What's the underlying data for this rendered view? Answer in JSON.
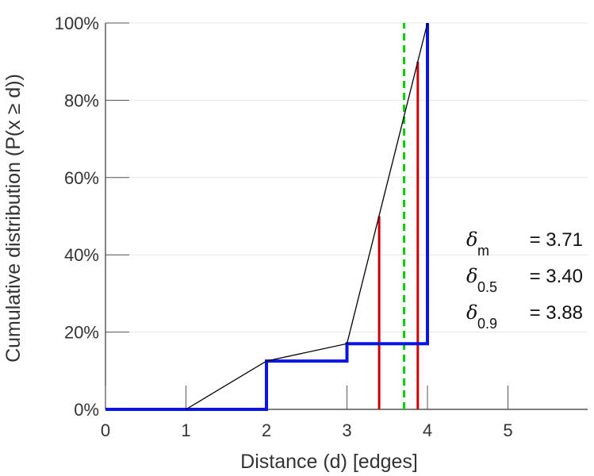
{
  "chart_data": {
    "type": "line",
    "xlabel": "Distance (d) [edges]",
    "ylabel": "Cumulative distribution (P(x ≥ d))",
    "xlim": [
      0,
      6
    ],
    "ylim": [
      0,
      1
    ],
    "x_ticks": [
      "0",
      "1",
      "2",
      "3",
      "4",
      "5"
    ],
    "y_ticks": [
      "0%",
      "20%",
      "40%",
      "60%",
      "80%",
      "100%"
    ],
    "grid": "horizontal",
    "series": [
      {
        "style": "step",
        "color": "#0a14e6",
        "points": [
          [
            0,
            0
          ],
          [
            2,
            0
          ],
          [
            2,
            0.125
          ],
          [
            3,
            0.125
          ],
          [
            3,
            0.17
          ],
          [
            4,
            0.17
          ],
          [
            4,
            1.0
          ]
        ]
      },
      {
        "style": "line",
        "color": "#000000",
        "points": [
          [
            1,
            0
          ],
          [
            2,
            0.125
          ],
          [
            3,
            0.17
          ],
          [
            4,
            1.0
          ]
        ]
      }
    ],
    "vlines": [
      {
        "x": 3.4,
        "y_top": 0.5,
        "color": "#cc0000",
        "style": "solid"
      },
      {
        "x": 3.88,
        "y_top": 0.9,
        "color": "#cc0000",
        "style": "solid"
      },
      {
        "x": 3.71,
        "y_top": 1.0,
        "color": "#00cc00",
        "style": "dashed"
      }
    ],
    "annotations": [
      {
        "symbol": "δ",
        "sub": "m",
        "text": "= 3.71"
      },
      {
        "symbol": "δ",
        "sub": "0.5",
        "text": "= 3.40"
      },
      {
        "symbol": "δ",
        "sub": "0.9",
        "text": "= 3.88"
      }
    ]
  }
}
